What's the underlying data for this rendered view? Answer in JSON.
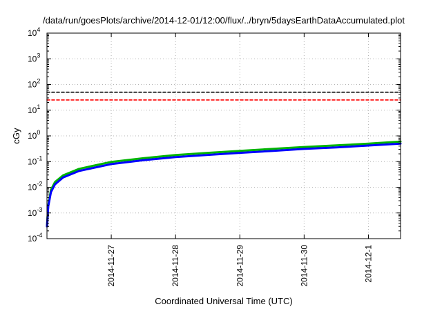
{
  "chart_data": {
    "type": "line",
    "title": "/data/run/goesPlots/archive/2014-12-01/12:00/flux/../bryn/5daysEarthDataAccumulated.plot",
    "xlabel": "Coordinated Universal Time (UTC)",
    "ylabel": "cGy",
    "yscale": "log",
    "ylim": [
      "1e-4",
      "1e4"
    ],
    "xlim": [
      "2014-11-26 00:00",
      "2014-12-01 12:00"
    ],
    "x_ticks": [
      "2014-11-27",
      "2014-11-28",
      "2014-11-29",
      "2014-11-30",
      "2014-12-1"
    ],
    "y_ticks": [
      {
        "base": "10",
        "exp": "-4"
      },
      {
        "base": "10",
        "exp": "-3"
      },
      {
        "base": "10",
        "exp": "-2"
      },
      {
        "base": "10",
        "exp": "-1"
      },
      {
        "base": "10",
        "exp": "0"
      },
      {
        "base": "10",
        "exp": "1"
      },
      {
        "base": "10",
        "exp": "2"
      },
      {
        "base": "10",
        "exp": "3"
      },
      {
        "base": "10",
        "exp": "4"
      }
    ],
    "grid": true,
    "series": [
      {
        "color": "#00b400",
        "style": "solid",
        "points": [
          {
            "x": "2014-11-26 00:00",
            "y": 0.0003
          },
          {
            "x": "2014-11-26 00:30",
            "y": 0.002
          },
          {
            "x": "2014-11-26 01:30",
            "y": 0.008
          },
          {
            "x": "2014-11-26 03:00",
            "y": 0.016
          },
          {
            "x": "2014-11-26 06:00",
            "y": 0.029
          },
          {
            "x": "2014-11-26 12:00",
            "y": 0.052
          },
          {
            "x": "2014-11-27 00:00",
            "y": 0.097
          },
          {
            "x": "2014-11-27 12:00",
            "y": 0.135
          },
          {
            "x": "2014-11-28 00:00",
            "y": 0.18
          },
          {
            "x": "2014-11-28 12:00",
            "y": 0.218
          },
          {
            "x": "2014-11-29 00:00",
            "y": 0.262
          },
          {
            "x": "2014-11-29 12:00",
            "y": 0.31
          },
          {
            "x": "2014-11-30 00:00",
            "y": 0.37
          },
          {
            "x": "2014-11-30 12:00",
            "y": 0.425
          },
          {
            "x": "2014-12-01 00:00",
            "y": 0.5
          },
          {
            "x": "2014-12-01 12:00",
            "y": 0.6
          }
        ]
      },
      {
        "color": "#0000ff",
        "style": "solid",
        "points": [
          {
            "x": "2014-11-26 00:00",
            "y": 0.0003
          },
          {
            "x": "2014-11-26 00:30",
            "y": 0.0018
          },
          {
            "x": "2014-11-26 01:30",
            "y": 0.0065
          },
          {
            "x": "2014-11-26 03:00",
            "y": 0.013
          },
          {
            "x": "2014-11-26 06:00",
            "y": 0.024
          },
          {
            "x": "2014-11-26 12:00",
            "y": 0.043
          },
          {
            "x": "2014-11-27 00:00",
            "y": 0.08
          },
          {
            "x": "2014-11-27 12:00",
            "y": 0.113
          },
          {
            "x": "2014-11-28 00:00",
            "y": 0.15
          },
          {
            "x": "2014-11-28 12:00",
            "y": 0.182
          },
          {
            "x": "2014-11-29 00:00",
            "y": 0.218
          },
          {
            "x": "2014-11-29 12:00",
            "y": 0.258
          },
          {
            "x": "2014-11-30 00:00",
            "y": 0.31
          },
          {
            "x": "2014-11-30 12:00",
            "y": 0.355
          },
          {
            "x": "2014-12-01 00:00",
            "y": 0.42
          },
          {
            "x": "2014-12-01 12:00",
            "y": 0.5
          }
        ]
      },
      {
        "color": "#000000",
        "style": "dashed",
        "points": [
          {
            "x": "2014-11-26 00:00",
            "y": 50
          },
          {
            "x": "2014-12-01 12:00",
            "y": 50
          }
        ]
      },
      {
        "color": "#ff0000",
        "style": "dashed",
        "points": [
          {
            "x": "2014-11-26 00:00",
            "y": 25
          },
          {
            "x": "2014-12-01 12:00",
            "y": 25
          }
        ]
      }
    ]
  }
}
